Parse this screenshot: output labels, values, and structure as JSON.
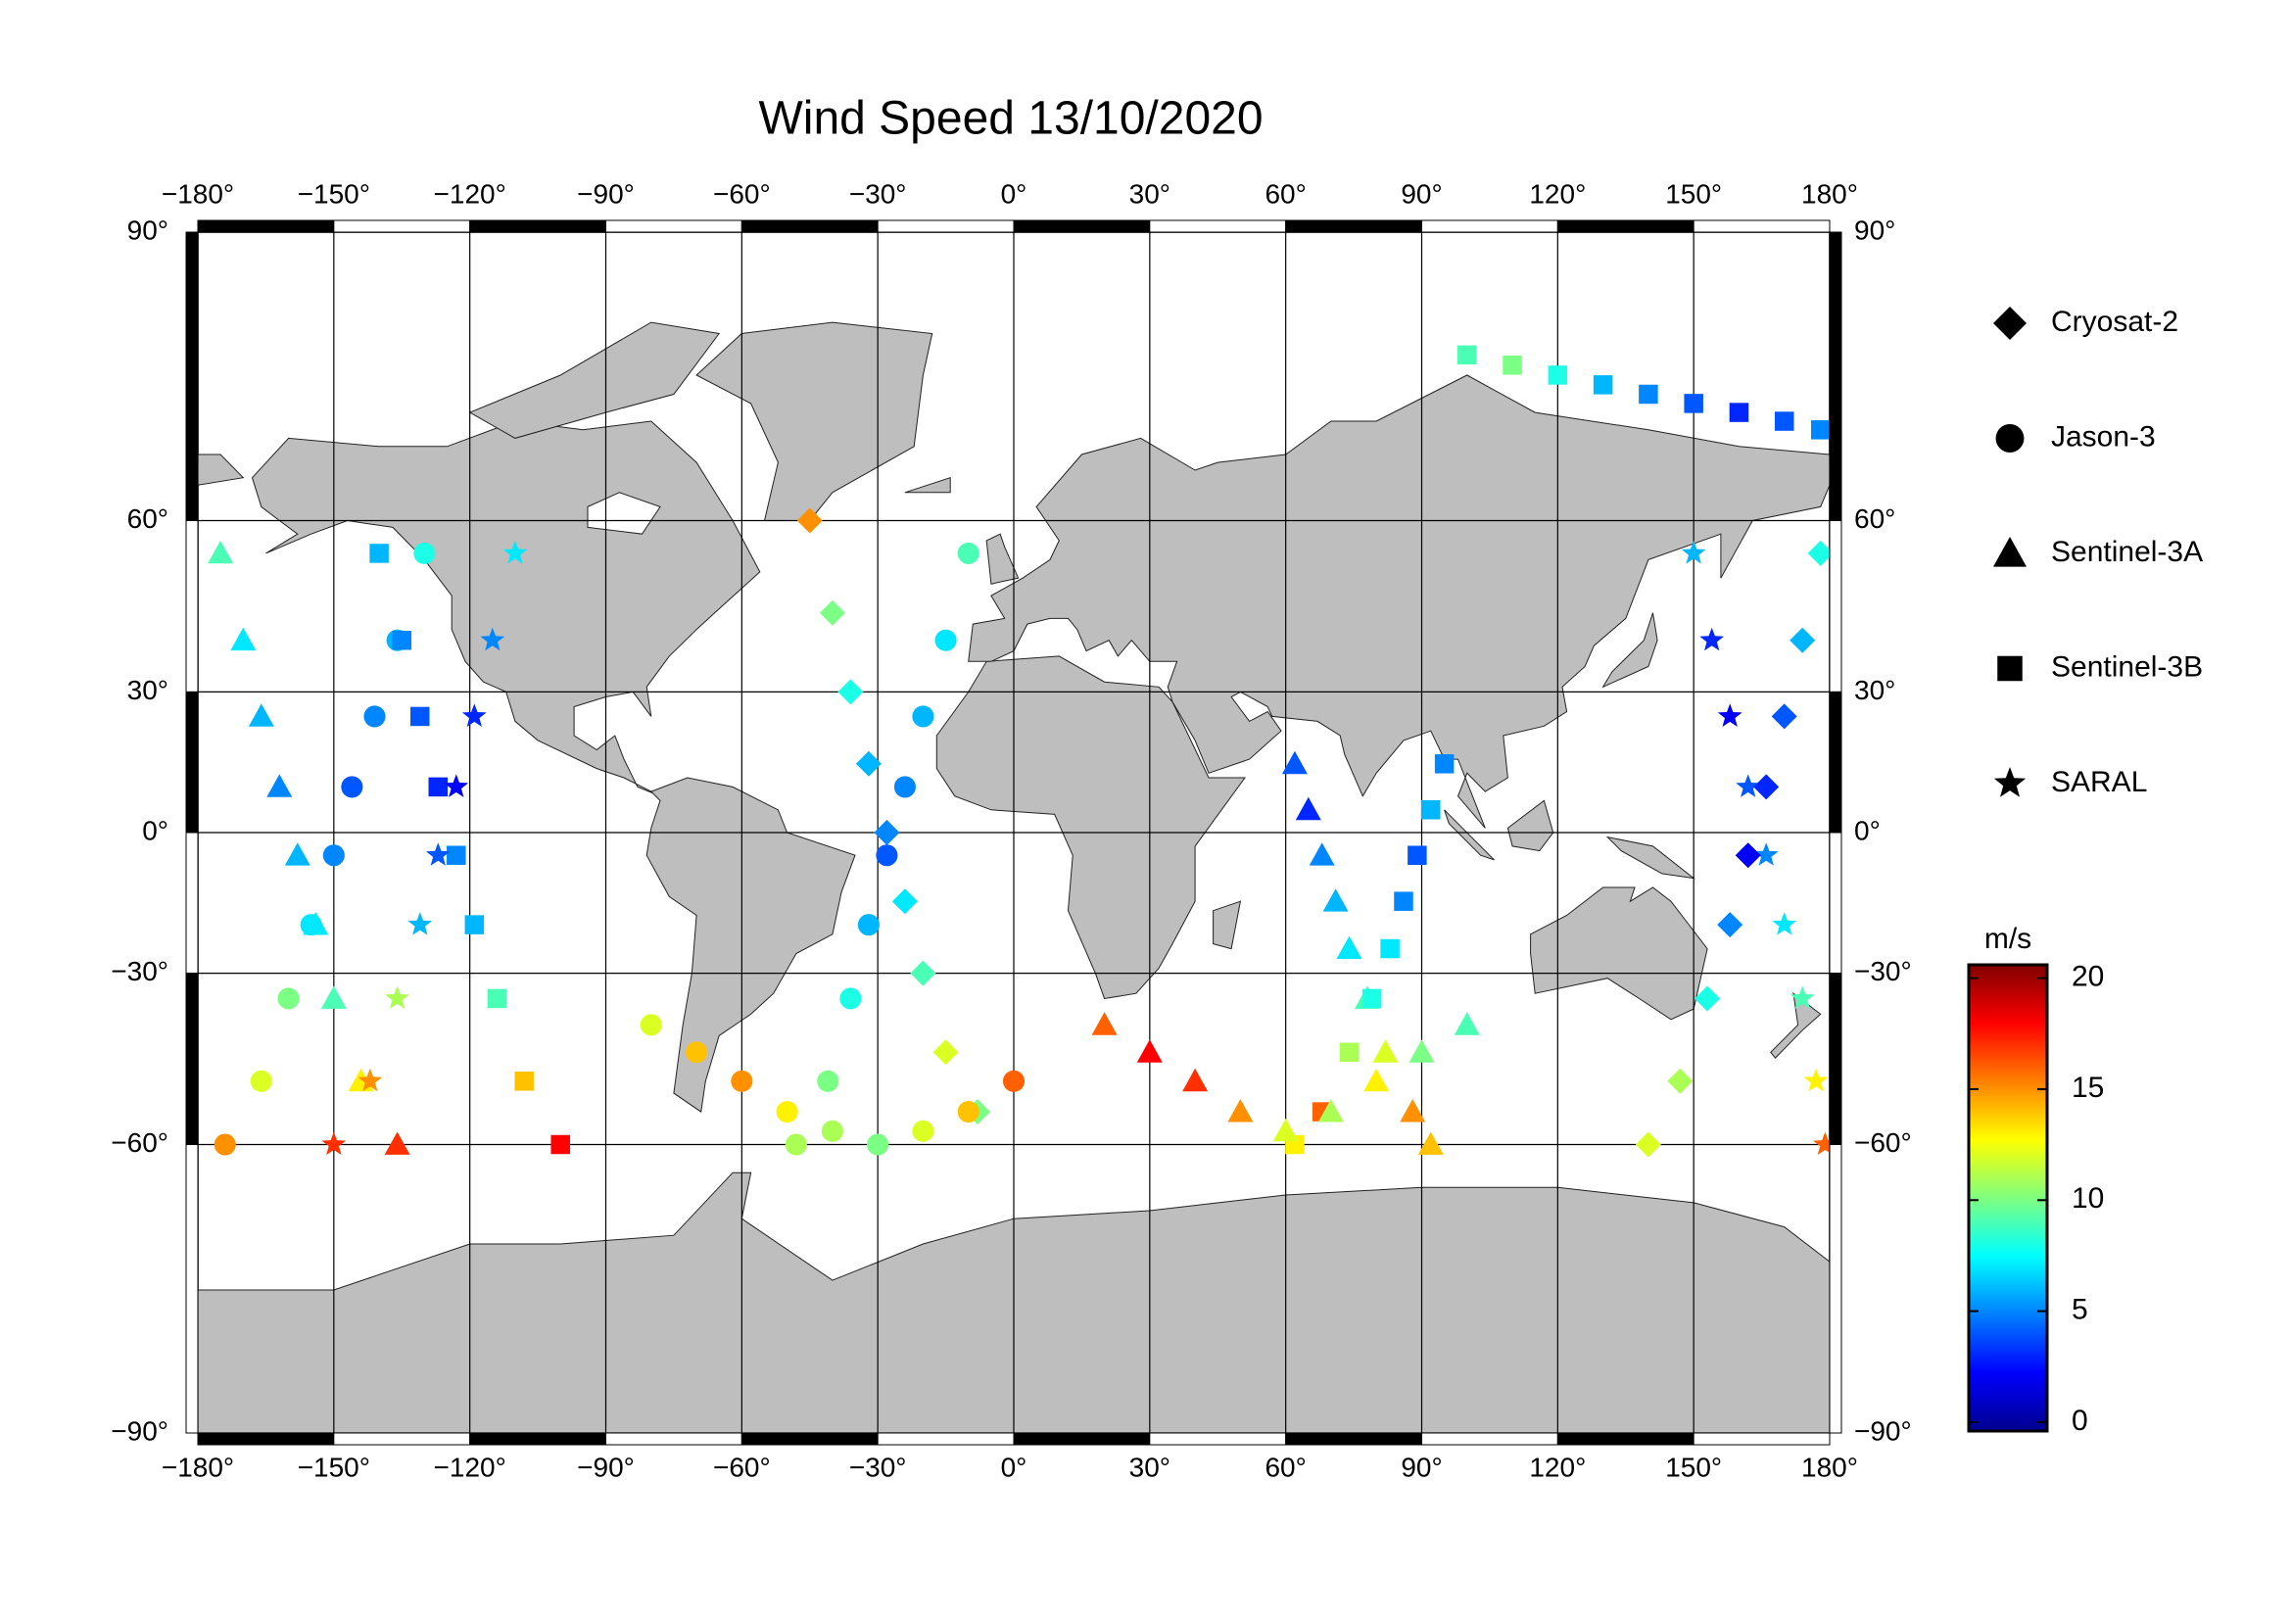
{
  "map": {
    "title": "Wind Speed 13/10/2020",
    "projection": "miller",
    "grid": true,
    "land_color": "#bebebe",
    "lon_ticks": [
      {
        "value": -180,
        "label": "−180°"
      },
      {
        "value": -150,
        "label": "−150°"
      },
      {
        "value": -120,
        "label": "−120°"
      },
      {
        "value": -90,
        "label": "−90°"
      },
      {
        "value": -60,
        "label": "−60°"
      },
      {
        "value": -30,
        "label": "−30°"
      },
      {
        "value": 0,
        "label": "0°"
      },
      {
        "value": 30,
        "label": "30°"
      },
      {
        "value": 60,
        "label": "60°"
      },
      {
        "value": 90,
        "label": "90°"
      },
      {
        "value": 120,
        "label": "120°"
      },
      {
        "value": 150,
        "label": "150°"
      },
      {
        "value": 180,
        "label": "180°"
      }
    ],
    "lat_ticks": [
      {
        "value": 90,
        "label": "90°"
      },
      {
        "value": 60,
        "label": "60°"
      },
      {
        "value": 30,
        "label": "30°"
      },
      {
        "value": 0,
        "label": "0°"
      },
      {
        "value": -30,
        "label": "−30°"
      },
      {
        "value": -60,
        "label": "−60°"
      },
      {
        "value": -90,
        "label": "−90°"
      }
    ],
    "missions": [
      "Cryosat-2",
      "Jason-3",
      "Sentinel-3A",
      "Sentinel-3B",
      "SARAL"
    ],
    "colorbar": {
      "label": "m/s",
      "lim": [
        -0.4,
        20.6
      ],
      "ticks": [
        0,
        5,
        10,
        15,
        20
      ],
      "colormap": "jet"
    },
    "tracks": [
      {
        "mission": 2,
        "lon": [
          -175,
          -170,
          -166,
          -162,
          -158,
          -154,
          -150,
          -144,
          -136
        ],
        "lat": [
          55,
          40,
          25,
          10,
          -5,
          -20,
          -35,
          -50,
          -60
        ],
        "speed": [
          9,
          7,
          6,
          5,
          6,
          7,
          9,
          13,
          17
        ]
      },
      {
        "mission": 1,
        "lon": [
          -130,
          -136,
          -141,
          -146,
          -150,
          -155,
          -160,
          -166,
          -174
        ],
        "lat": [
          55,
          40,
          25,
          10,
          -5,
          -20,
          -35,
          -50,
          -60
        ],
        "speed": [
          8,
          6,
          5,
          4,
          5,
          7,
          10,
          12,
          15
        ]
      },
      {
        "mission": 3,
        "lon": [
          -140,
          -135,
          -131,
          -127,
          -123,
          -119,
          -114,
          -108,
          -100
        ],
        "lat": [
          55,
          40,
          25,
          10,
          -5,
          -20,
          -35,
          -50,
          -60
        ],
        "speed": [
          6,
          5,
          4,
          3,
          5,
          6,
          9,
          14,
          18
        ]
      },
      {
        "mission": 4,
        "lon": [
          -110,
          -115,
          -119,
          -123,
          -127,
          -131,
          -136,
          -142,
          -150
        ],
        "lat": [
          55,
          40,
          25,
          10,
          -5,
          -20,
          -35,
          -50,
          -60
        ],
        "speed": [
          7,
          5,
          3,
          2,
          4,
          6,
          11,
          15,
          17
        ]
      },
      {
        "mission": 0,
        "lon": [
          -45,
          -40,
          -36,
          -32,
          -28,
          -24,
          -20,
          -15,
          -8
        ],
        "lat": [
          60,
          45,
          30,
          15,
          0,
          -15,
          -30,
          -45,
          -55
        ],
        "speed": [
          15,
          10,
          8,
          6,
          5,
          7,
          9,
          12,
          10
        ]
      },
      {
        "mission": 1,
        "lon": [
          -10,
          -15,
          -20,
          -24,
          -28,
          -32,
          -36,
          -41,
          -48
        ],
        "lat": [
          55,
          40,
          25,
          10,
          -5,
          -20,
          -35,
          -50,
          -60
        ],
        "speed": [
          9,
          7,
          6,
          5,
          4,
          6,
          8,
          10,
          11
        ]
      },
      {
        "mission": 2,
        "lon": [
          62,
          65,
          68,
          71,
          74,
          78,
          82,
          88,
          92
        ],
        "lat": [
          15,
          5,
          -5,
          -15,
          -25,
          -35,
          -45,
          -55,
          -60
        ],
        "speed": [
          4,
          3,
          5,
          6,
          7,
          9,
          12,
          15,
          14
        ]
      },
      {
        "mission": 3,
        "lon": [
          95,
          92,
          89,
          86,
          83,
          79,
          74,
          68,
          62
        ],
        "lat": [
          15,
          5,
          -5,
          -15,
          -25,
          -35,
          -45,
          -55,
          -60
        ],
        "speed": [
          5,
          6,
          4,
          5,
          7,
          8,
          11,
          16,
          13
        ]
      },
      {
        "mission": 4,
        "lon": [
          150,
          154,
          158,
          162,
          166,
          170,
          174,
          177,
          179
        ],
        "lat": [
          55,
          40,
          25,
          10,
          -5,
          -20,
          -35,
          -50,
          -60
        ],
        "speed": [
          6,
          3,
          2,
          4,
          5,
          7,
          9,
          13,
          16
        ]
      },
      {
        "mission": 0,
        "lon": [
          178,
          174,
          170,
          166,
          162,
          158,
          153,
          147,
          140
        ],
        "lat": [
          55,
          40,
          25,
          10,
          -5,
          -20,
          -35,
          -50,
          -60
        ],
        "speed": [
          8,
          6,
          4,
          3,
          2,
          5,
          8,
          11,
          12
        ]
      },
      {
        "mission": 1,
        "lon": [
          -80,
          -70,
          -60,
          -50,
          -40,
          -30,
          -20,
          -10,
          0
        ],
        "lat": [
          -40,
          -45,
          -50,
          -55,
          -58,
          -60,
          -58,
          -55,
          -50
        ],
        "speed": [
          12,
          14,
          15,
          13,
          11,
          10,
          12,
          14,
          16
        ]
      },
      {
        "mission": 2,
        "lon": [
          20,
          30,
          40,
          50,
          60,
          70,
          80,
          90,
          100
        ],
        "lat": [
          -40,
          -45,
          -50,
          -55,
          -58,
          -55,
          -50,
          -45,
          -40
        ],
        "speed": [
          16,
          18,
          17,
          15,
          12,
          11,
          13,
          10,
          9
        ]
      },
      {
        "mission": 3,
        "lon": [
          100,
          110,
          120,
          130,
          140,
          150,
          160,
          170,
          178
        ],
        "lat": [
          80,
          79,
          78,
          77,
          76,
          75,
          74,
          73,
          72
        ],
        "speed": [
          9,
          10,
          8,
          6,
          5,
          4,
          3,
          4,
          5
        ]
      }
    ]
  }
}
